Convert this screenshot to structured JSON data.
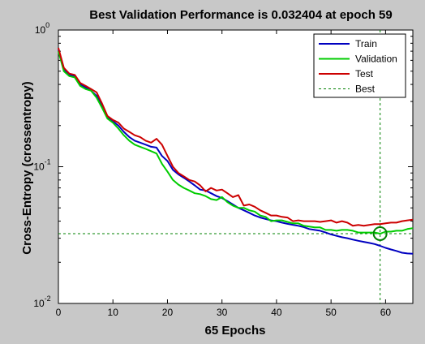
{
  "window": {
    "background": "#c8c8c8"
  },
  "chart_data": {
    "type": "line",
    "title": "Best Validation Performance is 0.032404 at epoch 59",
    "xlabel": "65 Epochs",
    "ylabel": "Cross-Entropy  (crossentropy)",
    "xlim": [
      0,
      65
    ],
    "ylim": [
      0.01,
      1
    ],
    "yscale": "log",
    "xticks": [
      0,
      10,
      20,
      30,
      40,
      50,
      60
    ],
    "xtick_labels": [
      "0",
      "10",
      "20",
      "30",
      "40",
      "50",
      "60"
    ],
    "yticks": [
      {
        "value": 1,
        "base": "10",
        "exp": "0"
      },
      {
        "value": 0.1,
        "base": "10",
        "exp": "-1"
      },
      {
        "value": 0.01,
        "base": "10",
        "exp": "-2"
      }
    ],
    "grid": false,
    "legend_position": "top-right",
    "best": {
      "epoch": 59,
      "value": 0.032404,
      "label": "Best",
      "color": "#008000"
    },
    "series": [
      {
        "name": "Train",
        "color": "#0000c0",
        "x": [
          0,
          1,
          2,
          3,
          4,
          5,
          6,
          7,
          8,
          9,
          10,
          11,
          12,
          13,
          14,
          15,
          16,
          17,
          18,
          19,
          20,
          21,
          22,
          23,
          24,
          25,
          26,
          27,
          28,
          29,
          30,
          31,
          32,
          33,
          34,
          35,
          36,
          37,
          38,
          39,
          40,
          41,
          42,
          43,
          44,
          45,
          46,
          47,
          48,
          49,
          50,
          51,
          52,
          53,
          54,
          55,
          56,
          57,
          58,
          59,
          60,
          61,
          62,
          63,
          64,
          65
        ],
        "y": [
          0.72,
          0.52,
          0.47,
          0.46,
          0.4,
          0.38,
          0.36,
          0.33,
          0.28,
          0.23,
          0.215,
          0.2,
          0.18,
          0.165,
          0.155,
          0.15,
          0.145,
          0.14,
          0.138,
          0.12,
          0.11,
          0.095,
          0.088,
          0.083,
          0.078,
          0.073,
          0.068,
          0.067,
          0.064,
          0.061,
          0.059,
          0.056,
          0.053,
          0.05,
          0.048,
          0.046,
          0.044,
          0.0425,
          0.0415,
          0.0405,
          0.04,
          0.039,
          0.0382,
          0.0376,
          0.037,
          0.0362,
          0.035,
          0.0345,
          0.034,
          0.033,
          0.032,
          0.0312,
          0.0305,
          0.03,
          0.0293,
          0.0287,
          0.0282,
          0.0277,
          0.0272,
          0.0264,
          0.0255,
          0.0248,
          0.0242,
          0.0235,
          0.0232,
          0.0231
        ]
      },
      {
        "name": "Validation",
        "color": "#00cc00",
        "x": [
          0,
          1,
          2,
          3,
          4,
          5,
          6,
          7,
          8,
          9,
          10,
          11,
          12,
          13,
          14,
          15,
          16,
          17,
          18,
          19,
          20,
          21,
          22,
          23,
          24,
          25,
          26,
          27,
          28,
          29,
          30,
          31,
          32,
          33,
          34,
          35,
          36,
          37,
          38,
          39,
          40,
          41,
          42,
          43,
          44,
          45,
          46,
          47,
          48,
          49,
          50,
          51,
          52,
          53,
          54,
          55,
          56,
          57,
          58,
          59,
          60,
          61,
          62,
          63,
          64,
          65
        ],
        "y": [
          0.7,
          0.5,
          0.46,
          0.45,
          0.39,
          0.37,
          0.36,
          0.32,
          0.27,
          0.225,
          0.21,
          0.19,
          0.17,
          0.155,
          0.145,
          0.14,
          0.135,
          0.13,
          0.125,
          0.105,
          0.092,
          0.08,
          0.074,
          0.07,
          0.067,
          0.064,
          0.063,
          0.061,
          0.058,
          0.057,
          0.06,
          0.055,
          0.052,
          0.05,
          0.05,
          0.048,
          0.047,
          0.044,
          0.043,
          0.04,
          0.0405,
          0.0405,
          0.0395,
          0.0385,
          0.0385,
          0.037,
          0.0365,
          0.036,
          0.036,
          0.0345,
          0.0345,
          0.034,
          0.0345,
          0.0345,
          0.034,
          0.033,
          0.033,
          0.033,
          0.033,
          0.0324,
          0.0335,
          0.0335,
          0.034,
          0.034,
          0.035,
          0.0355
        ]
      },
      {
        "name": "Test",
        "color": "#cc0000",
        "x": [
          0,
          1,
          2,
          3,
          4,
          5,
          6,
          7,
          8,
          9,
          10,
          11,
          12,
          13,
          14,
          15,
          16,
          17,
          18,
          19,
          20,
          21,
          22,
          23,
          24,
          25,
          26,
          27,
          28,
          29,
          30,
          31,
          32,
          33,
          34,
          35,
          36,
          37,
          38,
          39,
          40,
          41,
          42,
          43,
          44,
          45,
          46,
          47,
          48,
          49,
          50,
          51,
          52,
          53,
          54,
          55,
          56,
          57,
          58,
          59,
          60,
          61,
          62,
          63,
          64,
          65
        ],
        "y": [
          0.74,
          0.53,
          0.48,
          0.47,
          0.41,
          0.39,
          0.37,
          0.35,
          0.29,
          0.235,
          0.22,
          0.21,
          0.19,
          0.18,
          0.17,
          0.165,
          0.155,
          0.15,
          0.16,
          0.145,
          0.12,
          0.1,
          0.09,
          0.085,
          0.08,
          0.078,
          0.073,
          0.066,
          0.07,
          0.067,
          0.068,
          0.064,
          0.06,
          0.062,
          0.052,
          0.053,
          0.051,
          0.048,
          0.046,
          0.044,
          0.044,
          0.043,
          0.0425,
          0.04,
          0.0405,
          0.04,
          0.04,
          0.04,
          0.0395,
          0.04,
          0.0405,
          0.039,
          0.04,
          0.039,
          0.037,
          0.0375,
          0.037,
          0.0375,
          0.038,
          0.038,
          0.0385,
          0.039,
          0.039,
          0.04,
          0.0405,
          0.041
        ]
      }
    ]
  }
}
